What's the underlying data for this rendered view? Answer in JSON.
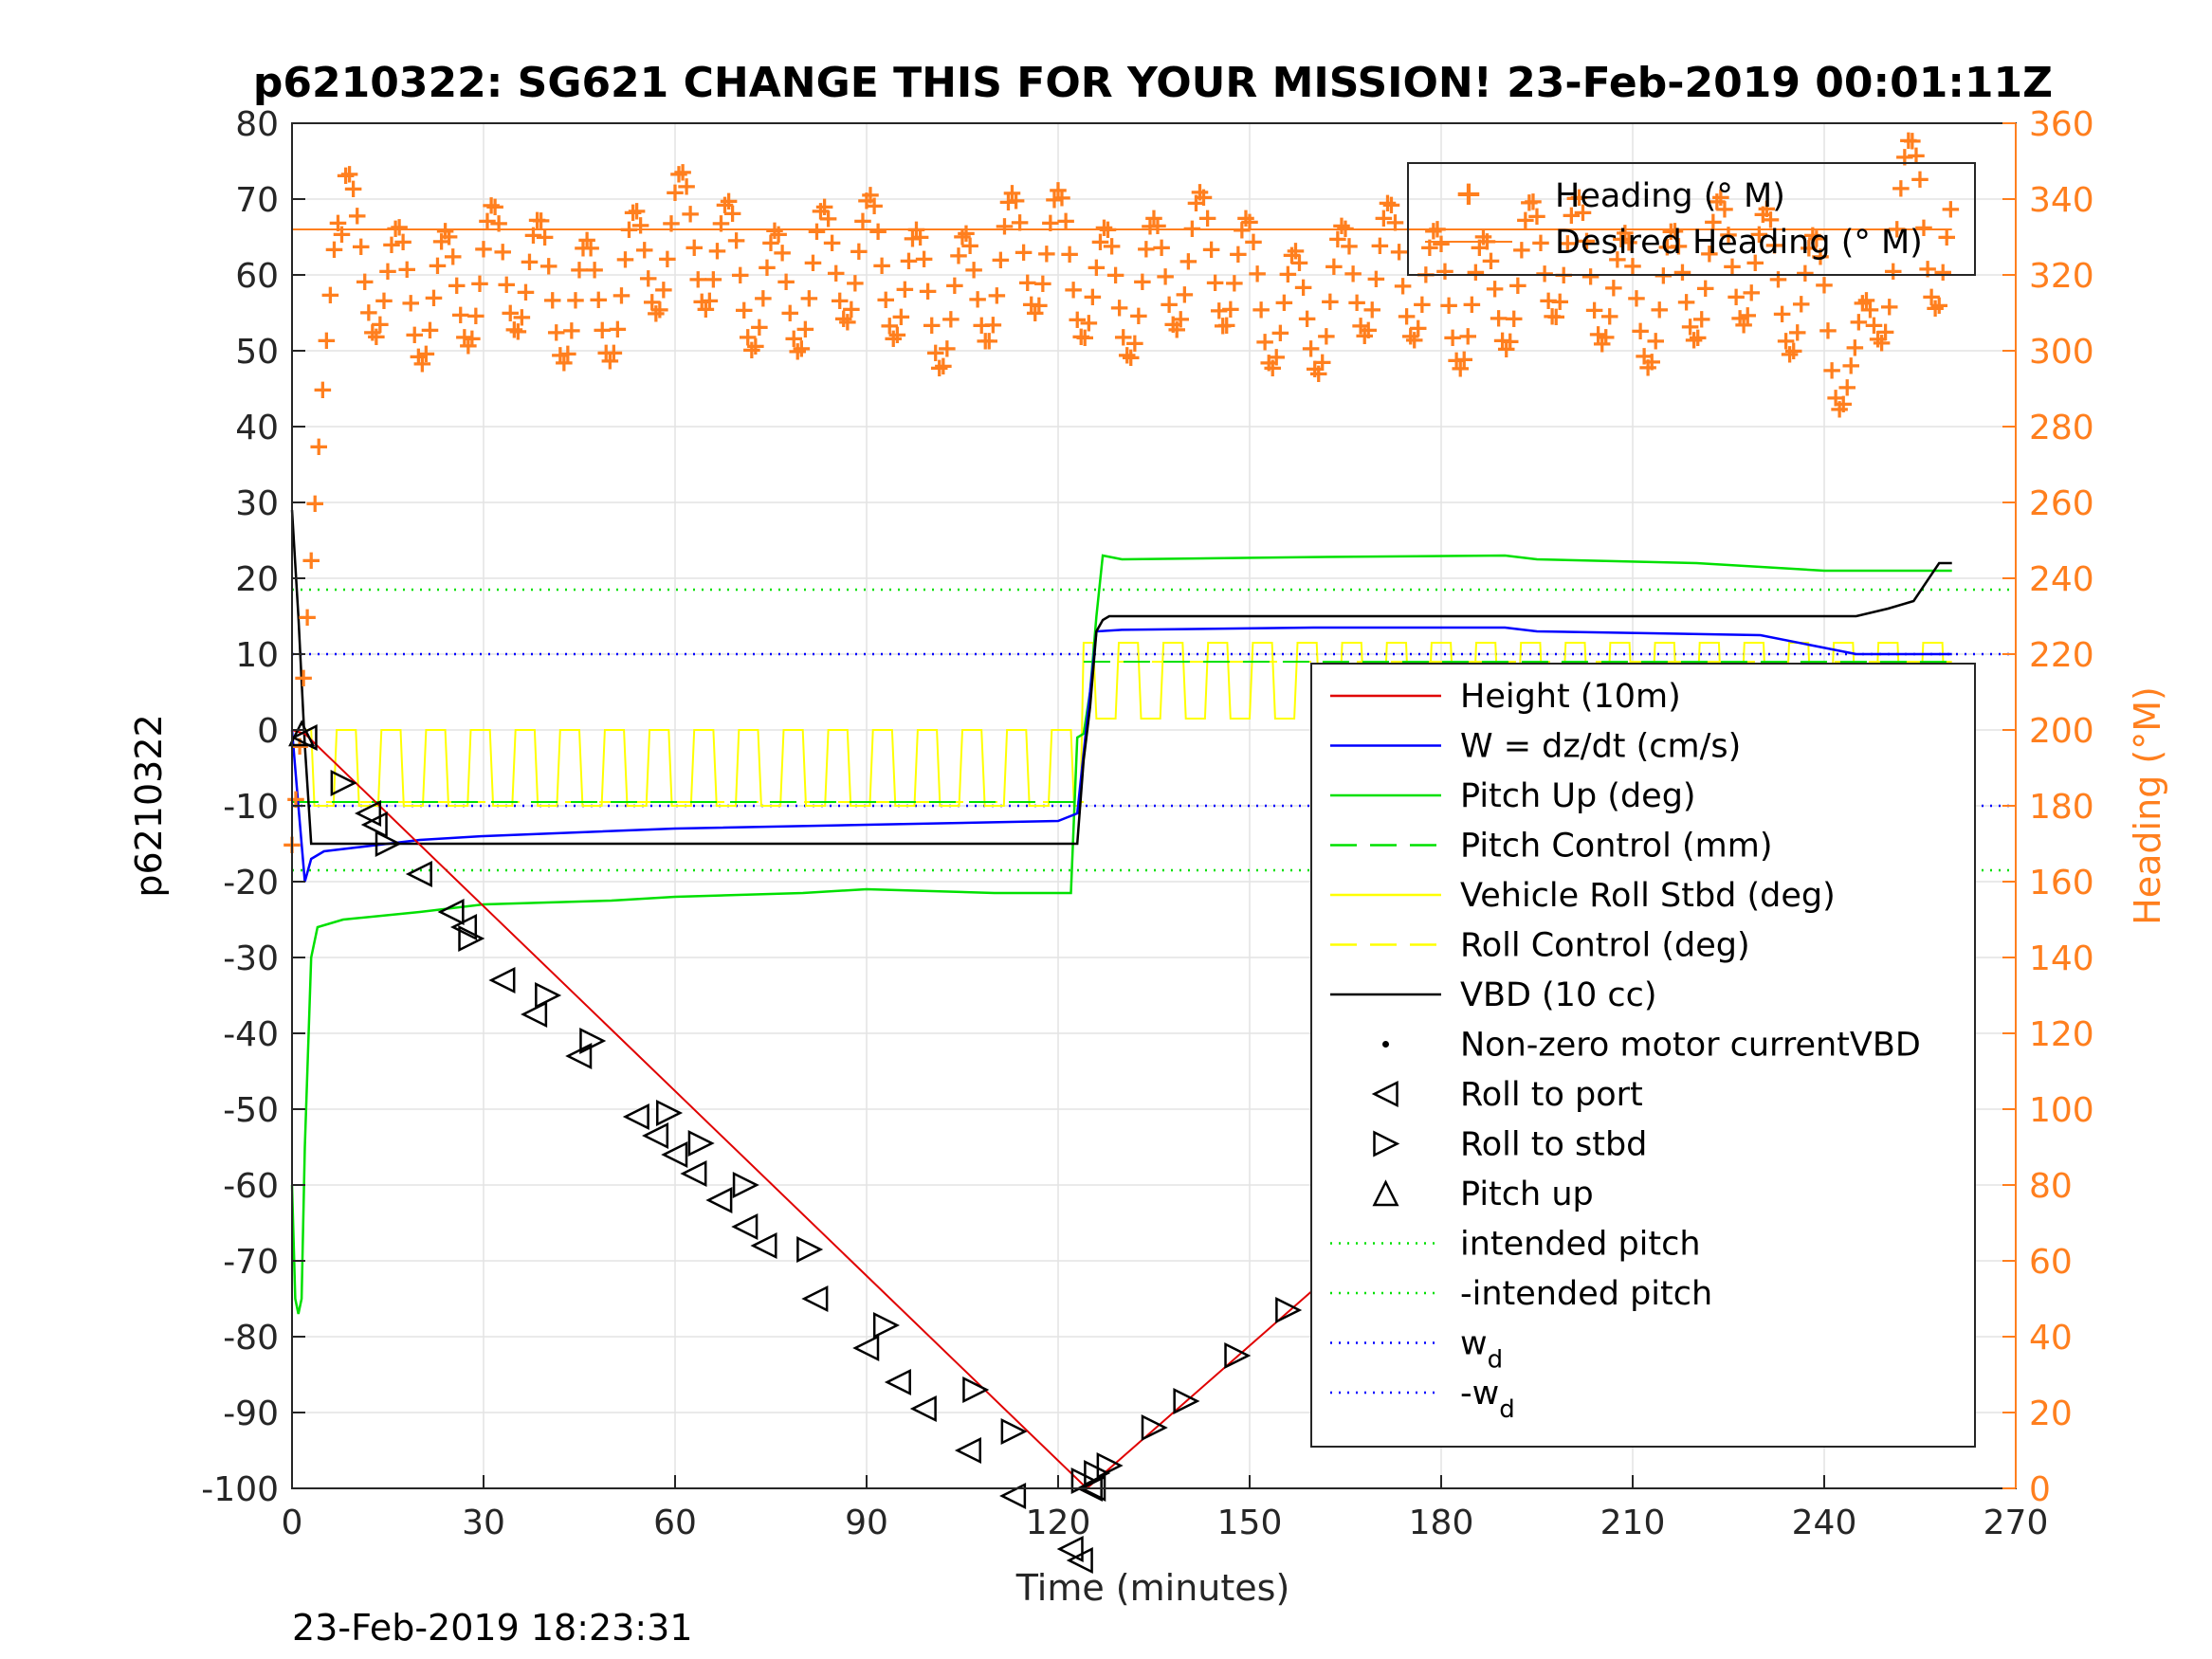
{
  "chart_data": {
    "type": "line",
    "title": "p6210322: SG621 CHANGE THIS FOR YOUR MISSION! 23-Feb-2019 00:01:11Z",
    "xlabel": "Time (minutes)",
    "ylabel_left": "p6210322",
    "ylabel_right": "Heading (°M)",
    "timestamp": "23-Feb-2019 18:23:31",
    "xlim": [
      0,
      270
    ],
    "ylim_left": [
      -100,
      80
    ],
    "ylim_right": [
      0,
      360
    ],
    "x_ticks": [
      "0",
      "30",
      "60",
      "90",
      "120",
      "150",
      "180",
      "210",
      "240",
      "270"
    ],
    "y_ticks_left": [
      "-100",
      "-90",
      "-80",
      "-70",
      "-60",
      "-50",
      "-40",
      "-30",
      "-20",
      "-10",
      "0",
      "10",
      "20",
      "30",
      "40",
      "50",
      "60",
      "70",
      "80"
    ],
    "y_ticks_right": [
      "0",
      "20",
      "40",
      "60",
      "80",
      "100",
      "120",
      "140",
      "160",
      "180",
      "200",
      "220",
      "240",
      "260",
      "280",
      "300",
      "320",
      "340",
      "360"
    ],
    "grid": true,
    "colors": {
      "heading": "#ff7f1e",
      "height": "#e00000",
      "w": "#0000ff",
      "pitch": "#00e000",
      "roll": "#ffff00",
      "vbd": "#000000",
      "markers": "#000000"
    },
    "legend_heading": {
      "placement": "top-right",
      "entries": [
        "Heading (° M)",
        "Desired Heading (° M)"
      ]
    },
    "legend_main": {
      "placement": "right",
      "entries": [
        "Height (10m)",
        "W = dz/dt (cm/s)",
        "Pitch Up (deg)",
        "Pitch Control (mm)",
        "Vehicle Roll Stbd (deg)",
        "Roll Control (deg)",
        "VBD (10 cc)",
        "Non-zero motor currentVBD",
        "Roll to port",
        "Roll to stbd",
        "Pitch up",
        "intended pitch",
        "-intended pitch",
        "w_d",
        "-w_d"
      ]
    },
    "series": {
      "height": {
        "x": [
          0,
          2,
          124.5,
          260
        ],
        "y": [
          0,
          -0.5,
          -100,
          0
        ]
      },
      "w": {
        "x": [
          0,
          1,
          2,
          3,
          5,
          10,
          20,
          30,
          60,
          90,
          120,
          123,
          125,
          126,
          130,
          160,
          190,
          195,
          230,
          245,
          260
        ],
        "y": [
          0,
          -10,
          -20,
          -17,
          -16,
          -15.5,
          -14.5,
          -14,
          -13,
          -12.5,
          -12,
          -11,
          5,
          13,
          13.2,
          13.5,
          13.5,
          13,
          12.5,
          10,
          10
        ]
      },
      "pitch": {
        "x": [
          0,
          0.5,
          1,
          1.5,
          2,
          3,
          4,
          8,
          20,
          30,
          50,
          60,
          80,
          90,
          110,
          122,
          123,
          124,
          125,
          126,
          127,
          130,
          160,
          190,
          195,
          220,
          240,
          258,
          260
        ],
        "y": [
          -60,
          -75,
          -77,
          -75,
          -55,
          -30,
          -26,
          -25,
          -24,
          -23,
          -22.5,
          -22,
          -21.5,
          -21,
          -21.5,
          -21.5,
          -1,
          -0.5,
          5,
          15,
          23,
          22.5,
          22.8,
          23,
          22.5,
          22,
          21,
          21,
          21
        ]
      },
      "vbd": {
        "x": [
          0,
          1,
          2,
          3,
          123,
          124,
          125,
          126,
          127,
          128,
          245,
          250,
          254,
          258,
          260
        ],
        "y": [
          29,
          15,
          -2,
          -15,
          -15,
          -4,
          3,
          13,
          14.5,
          15,
          15,
          16,
          17,
          22,
          22
        ]
      },
      "heading": {
        "x": [
          0,
          1,
          2,
          3,
          4,
          5,
          6,
          7,
          8,
          10,
          20,
          40,
          60,
          80,
          100,
          120,
          140,
          160,
          180,
          200,
          220,
          240,
          245,
          250,
          255,
          258,
          260
        ],
        "y": [
          170,
          190,
          220,
          245,
          270,
          295,
          315,
          335,
          330,
          320,
          320,
          315,
          325,
          320,
          318,
          322,
          320,
          315,
          318,
          320,
          318,
          320,
          290,
          320,
          340,
          320,
          325
        ]
      },
      "desired_heading": {
        "x": [
          0,
          260
        ],
        "y": [
          332,
          332
        ]
      },
      "roll_to_port": {
        "x": [
          2,
          12,
          13,
          20,
          25,
          27,
          33,
          38,
          45,
          54,
          57,
          60,
          63,
          67,
          71,
          74,
          82,
          90,
          95,
          99,
          106,
          113,
          122,
          123.5,
          125,
          125.5
        ],
        "y": [
          -1,
          -11,
          -12.5,
          -19,
          -24,
          -26,
          -33,
          -37.5,
          -43,
          -51,
          -53.5,
          -56,
          -58.5,
          -62,
          -65.5,
          -68,
          -75,
          -81.5,
          -86,
          -89.5,
          -95,
          -101,
          -108,
          -109.5,
          -100,
          -100
        ]
      },
      "roll_to_stbd": {
        "x": [
          8,
          15,
          28,
          40,
          47,
          59,
          64,
          71,
          81,
          93,
          107,
          113,
          124,
          126,
          128,
          135,
          140,
          148,
          156,
          164,
          172,
          181,
          191,
          195,
          200,
          205,
          210,
          215,
          224,
          231,
          238,
          241,
          248,
          251,
          256,
          258,
          259,
          260
        ],
        "y": [
          -7,
          -15,
          -27.5,
          -35,
          -41,
          -50.5,
          -54.5,
          -60,
          -68.5,
          -78.5,
          -87,
          -92.5,
          -99,
          -98,
          -97,
          -92,
          -88.5,
          -82.5,
          -76.5,
          -70.5,
          -64.5,
          -57.5,
          -49.5,
          -46.5,
          -43,
          -39.5,
          -35.5,
          -31.5,
          -25,
          -19.5,
          -14,
          -12,
          -6.5,
          -4.5,
          -1.5,
          -0.5,
          0,
          0
        ]
      },
      "pitch_up": {
        "x": [
          1.5,
          172
        ],
        "y": [
          -0.5,
          -63
        ]
      }
    },
    "reference_lines": {
      "intended_pitch": 18.5,
      "minus_intended_pitch": -18.5,
      "w_d": 10,
      "minus_w_d": -10
    }
  }
}
